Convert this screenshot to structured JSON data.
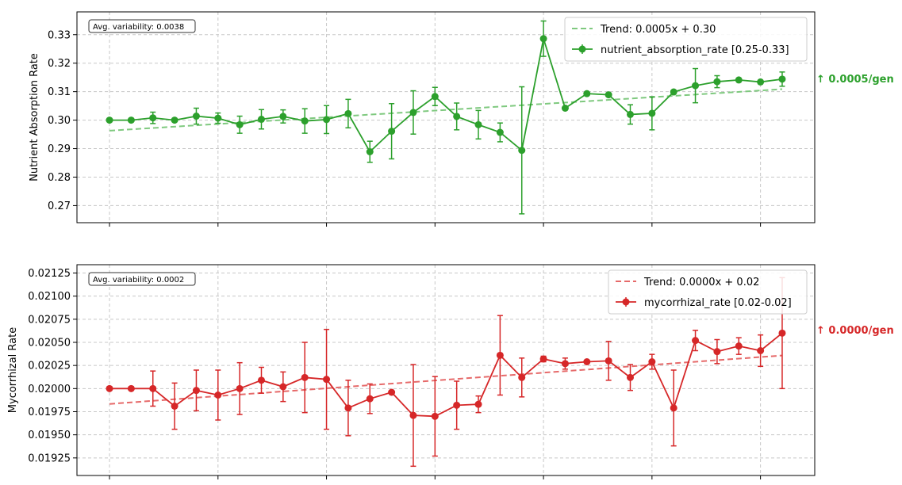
{
  "chart_data": [
    {
      "type": "line",
      "ylabel": "Nutrient Absorption Rate",
      "xlabel": "",
      "ylim": [
        0.264,
        0.338
      ],
      "xlim": [
        -1.5,
        32.5
      ],
      "yticks": [
        0.27,
        0.28,
        0.29,
        0.3,
        0.31,
        0.32,
        0.33
      ],
      "ytick_labels": [
        "0.27",
        "0.28",
        "0.29",
        "0.30",
        "0.31",
        "0.32",
        "0.33"
      ],
      "xticks": [
        0,
        5,
        10,
        15,
        20,
        25,
        30
      ],
      "grid": true,
      "legend_position": "top-right",
      "color": "#2ca02c",
      "trend_color": "#7fc97f",
      "series": [
        {
          "name": "nutrient_absorption_rate [0.25-0.33]",
          "x": [
            0,
            1,
            2,
            3,
            4,
            5,
            6,
            7,
            8,
            9,
            10,
            11,
            12,
            13,
            14,
            15,
            16,
            17,
            18,
            19,
            20,
            21,
            22,
            23,
            24,
            25,
            26,
            27,
            28,
            29,
            30,
            31
          ],
          "values": [
            0.3,
            0.3,
            0.3008,
            0.3,
            0.3014,
            0.3007,
            0.2984,
            0.3003,
            0.3013,
            0.2997,
            0.3002,
            0.3023,
            0.2889,
            0.2961,
            0.3027,
            0.3083,
            0.3013,
            0.2984,
            0.2957,
            0.2894,
            0.3286,
            0.3042,
            0.3093,
            0.3089,
            0.302,
            0.3024,
            0.3099,
            0.3121,
            0.3135,
            0.3141,
            0.3134,
            0.3144
          ],
          "errors": [
            0.0001,
            0.0001,
            0.002,
            0.0004,
            0.0028,
            0.0018,
            0.003,
            0.0034,
            0.0023,
            0.0043,
            0.0049,
            0.005,
            0.0037,
            0.0097,
            0.0076,
            0.0032,
            0.0047,
            0.005,
            0.0033,
            0.0223,
            0.0062,
            0.0005,
            0.0003,
            0.0003,
            0.0034,
            0.0058,
            0.0003,
            0.006,
            0.0021,
            0.0004,
            0.0003,
            0.0025
          ]
        }
      ],
      "trend": {
        "label": "Trend: 0.0005x + 0.30",
        "slope": 0.00047,
        "intercept": 0.2963
      },
      "annotation": "Avg. variability: 0.0038",
      "side_label": "↑ 0.0005/gen"
    },
    {
      "type": "line",
      "ylabel": "Mycorrhizal Rate",
      "xlabel": "",
      "ylim": [
        0.01906,
        0.02134
      ],
      "xlim": [
        -1.5,
        32.5
      ],
      "yticks": [
        0.01925,
        0.0195,
        0.01975,
        0.02,
        0.02025,
        0.0205,
        0.02075,
        0.021,
        0.02125
      ],
      "ytick_labels": [
        "0.01925",
        "0.01950",
        "0.01975",
        "0.02000",
        "0.02025",
        "0.02050",
        "0.02075",
        "0.02100",
        "0.02125"
      ],
      "xticks": [
        0,
        5,
        10,
        15,
        20,
        25,
        30
      ],
      "grid": true,
      "legend_position": "top-right",
      "color": "#d62728",
      "trend_color": "#e66a6a",
      "series": [
        {
          "name": "mycorrhizal_rate [0.02-0.02]",
          "x": [
            0,
            1,
            2,
            3,
            4,
            5,
            6,
            7,
            8,
            9,
            10,
            11,
            12,
            13,
            14,
            15,
            16,
            17,
            18,
            19,
            20,
            21,
            22,
            23,
            24,
            25,
            26,
            27,
            28,
            29,
            30,
            31
          ],
          "values": [
            0.02,
            0.02,
            0.02,
            0.01981,
            0.01998,
            0.01993,
            0.02,
            0.02009,
            0.02002,
            0.02012,
            0.0201,
            0.01979,
            0.01989,
            0.01996,
            0.01971,
            0.0197,
            0.01982,
            0.01983,
            0.02036,
            0.02012,
            0.02032,
            0.02027,
            0.02029,
            0.0203,
            0.02012,
            0.02029,
            0.01979,
            0.02052,
            0.0204,
            0.02046,
            0.02041,
            0.0206
          ],
          "errors": [
            2e-06,
            4e-06,
            0.00019,
            0.00025,
            0.00022,
            0.00027,
            0.00028,
            0.00014,
            0.00016,
            0.00038,
            0.00054,
            0.0003,
            0.00016,
            1e-07,
            0.00055,
            0.00043,
            0.00026,
            9e-05,
            0.00043,
            0.00021,
            3e-05,
            6e-05,
            1e-07,
            0.00021,
            0.00014,
            8e-05,
            0.00041,
            0.00011,
            0.00013,
            9e-05,
            0.00017,
            0.0006
          ]
        }
      ],
      "trend": {
        "label": "Trend: 0.0000x + 0.02",
        "slope": 1.69e-05,
        "intercept": 0.019834
      },
      "annotation": "Avg. variability: 0.0002",
      "side_label": "↑ 0.0000/gen"
    }
  ]
}
